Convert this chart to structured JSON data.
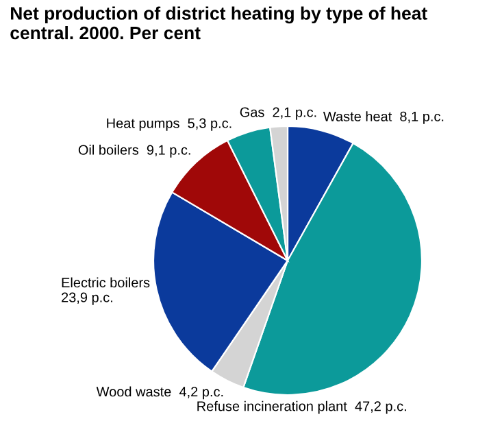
{
  "chart_data": {
    "type": "pie",
    "title": "Net production of district heating by type of heat central. 2000. Per cent",
    "categories": [
      "Waste heat",
      "Refuse incineration plant",
      "Wood waste",
      "Electric boilers",
      "Oil boilers",
      "Heat pumps",
      "Gas"
    ],
    "values": [
      8.1,
      47.2,
      4.2,
      23.9,
      9.1,
      5.3,
      2.1
    ],
    "value_labels": [
      "8,1 p.c.",
      "47,2 p.c.",
      "4,2 p.c.",
      "23,9 p.c.",
      "9,1 p.c.",
      "5,3 p.c.",
      "2,1 p.c."
    ],
    "colors": [
      "#0b3a9c",
      "#0c9a9a",
      "#d4d4d4",
      "#0b3a9c",
      "#a00808",
      "#0c9a9a",
      "#d4d4d4"
    ]
  }
}
